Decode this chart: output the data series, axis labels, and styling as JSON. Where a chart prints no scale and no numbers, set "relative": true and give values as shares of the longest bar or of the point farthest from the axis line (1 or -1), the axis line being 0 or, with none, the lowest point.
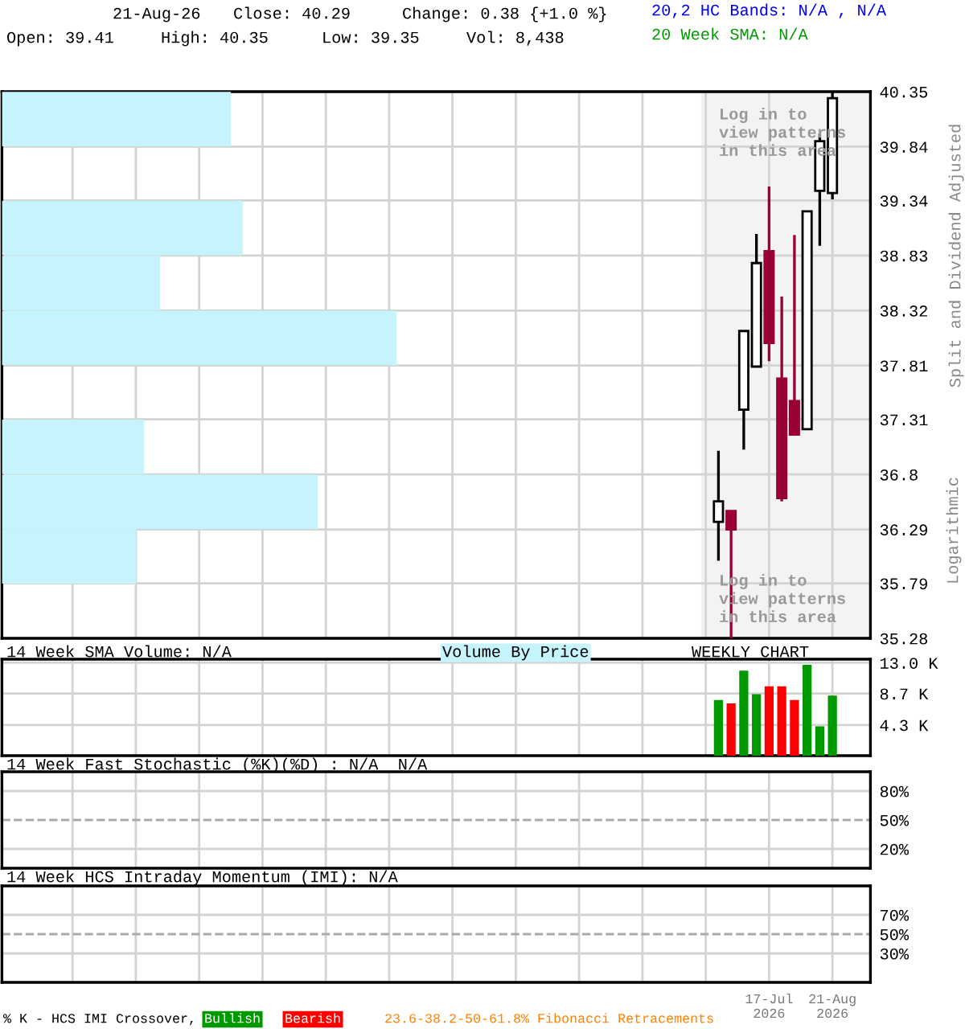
{
  "chart_data": [
    {
      "type": "candlestick",
      "ylabel": "Split and Dividend Adjusted",
      "x": [
        "2026-06-19",
        "2026-06-26",
        "2026-07-03",
        "2026-07-10",
        "2026-07-17",
        "2026-07-24",
        "2026-07-31",
        "2026-08-07",
        "2026-08-14",
        "2026-08-21"
      ],
      "ohlc": [
        [
          36.36,
          37.02,
          36.0,
          36.55
        ],
        [
          36.46,
          36.46,
          35.28,
          36.29
        ],
        [
          37.4,
          38.13,
          37.03,
          38.13
        ],
        [
          37.8,
          39.03,
          37.8,
          38.76
        ],
        [
          38.87,
          39.47,
          37.85,
          38.02
        ],
        [
          37.69,
          38.45,
          36.55,
          36.58
        ],
        [
          37.48,
          39.02,
          37.17,
          37.17
        ],
        [
          37.22,
          39.24,
          37.22,
          39.24
        ],
        [
          39.43,
          39.96,
          38.92,
          39.89
        ],
        [
          39.41,
          40.35,
          39.35,
          40.29
        ]
      ],
      "colors": [
        "#000000",
        "#990033",
        "#000000",
        "#000000",
        "#990033",
        "#990033",
        "#990033",
        "#000000",
        "#000000",
        "#000000"
      ],
      "xlim": [
        "2025-05-19",
        "2026-09-11"
      ],
      "xticks": [
        {
          "value": "2025-06-27",
          "label": null
        },
        {
          "value": "2025-08-01",
          "label": null
        },
        {
          "value": "2025-09-05",
          "label": null
        },
        {
          "value": "2025-10-10",
          "label": null
        },
        {
          "value": "2025-11-14",
          "label": null
        },
        {
          "value": "2025-12-19",
          "label": null
        },
        {
          "value": "2026-01-23",
          "label": null
        },
        {
          "value": "2026-02-27",
          "label": null
        },
        {
          "value": "2026-04-03",
          "label": null
        },
        {
          "value": "2026-05-08",
          "label": null
        },
        {
          "value": "2026-06-12",
          "label": null
        },
        {
          "value": "2026-07-17",
          "label": null
        },
        {
          "value": "2026-08-21",
          "label": null
        }
      ],
      "ylim": [
        35.28,
        40.35
      ],
      "yticks": [
        40.35,
        39.84,
        39.34,
        38.83,
        38.32,
        37.81,
        37.31,
        36.8,
        36.29,
        35.79,
        35.28
      ],
      "bands": [
        {
          "axis": "x",
          "from": "2026-06-10",
          "to": "2026-09-11",
          "color": "#f3f3f3"
        }
      ],
      "grid": true,
      "tick_labels": "y",
      "annotations": [
        "21-Aug-26",
        "Close: 40.29",
        "Change: 0.38 {+1.0 %}",
        "Open: 39.41",
        "High: 40.35",
        "Low: 39.35",
        "Vol: 8,438",
        "20,2 HC Bands: N/A , N/A",
        "20 Week SMA: N/A",
        "Logarithmic",
        "Log in to\nview patterns\nin this area",
        "Log in to\nview patterns\nin this area"
      ]
    },
    {
      "type": "bar",
      "orientation": "horizontal",
      "relative": true,
      "x": [
        40.095,
        39.085,
        38.575,
        38.065,
        37.055,
        36.545,
        36.04
      ],
      "values": [
        0.58,
        0.61,
        0.4,
        1,
        0.36,
        0.8,
        0.34
      ],
      "ylim": [
        35.28,
        40.35
      ],
      "yticks": [
        40.35,
        39.84,
        39.34,
        38.83,
        38.32,
        37.81,
        37.31,
        36.8,
        36.29,
        35.79,
        35.28
      ],
      "color": "#c6f4fc",
      "tick_labels": false
    },
    {
      "type": "bar",
      "title": "14 Week SMA Volume: N/A",
      "x": [
        "2026-06-19",
        "2026-06-26",
        "2026-07-03",
        "2026-07-10",
        "2026-07-17",
        "2026-07-24",
        "2026-07-31",
        "2026-08-07",
        "2026-08-14",
        "2026-08-21"
      ],
      "values": [
        7.8,
        7.3,
        11.9,
        8.6,
        9.7,
        9.7,
        7.8,
        12.7,
        4.1,
        8.4
      ],
      "colors": [
        "#009900",
        "#ff0000",
        "#009900",
        "#009900",
        "#ff0000",
        "#ff0000",
        "#ff0000",
        "#009900",
        "#009900",
        "#009900"
      ],
      "xlim": [
        "2025-05-19",
        "2026-09-11"
      ],
      "xticks": [
        {
          "value": "2025-06-27",
          "label": null
        },
        {
          "value": "2025-08-01",
          "label": null
        },
        {
          "value": "2025-09-05",
          "label": null
        },
        {
          "value": "2025-10-10",
          "label": null
        },
        {
          "value": "2025-11-14",
          "label": null
        },
        {
          "value": "2025-12-19",
          "label": null
        },
        {
          "value": "2026-01-23",
          "label": null
        },
        {
          "value": "2026-02-27",
          "label": null
        },
        {
          "value": "2026-04-03",
          "label": null
        },
        {
          "value": "2026-05-08",
          "label": null
        },
        {
          "value": "2026-06-12",
          "label": null
        },
        {
          "value": "2026-07-17",
          "label": null
        },
        {
          "value": "2026-08-21",
          "label": null
        }
      ],
      "ylim": [
        0,
        13.5
      ],
      "yticks": [
        {
          "value": 13.0,
          "label": "13.0 K"
        },
        {
          "value": 8.7,
          "label": "8.7 K"
        },
        {
          "value": 4.3,
          "label": "4.3 K"
        }
      ],
      "grid": true,
      "tick_labels": "y",
      "annotations": [
        "Volume By Price",
        "WEEKLY CHART"
      ]
    },
    {
      "type": "line",
      "title": "14 Week Fast Stochastic (%K)(%D) : N/A  N/A",
      "xlim": [
        "2025-05-19",
        "2026-09-11"
      ],
      "xticks": [
        {
          "value": "2025-06-27",
          "label": null
        },
        {
          "value": "2025-08-01",
          "label": null
        },
        {
          "value": "2025-09-05",
          "label": null
        },
        {
          "value": "2025-10-10",
          "label": null
        },
        {
          "value": "2025-11-14",
          "label": null
        },
        {
          "value": "2025-12-19",
          "label": null
        },
        {
          "value": "2026-01-23",
          "label": null
        },
        {
          "value": "2026-02-27",
          "label": null
        },
        {
          "value": "2026-04-03",
          "label": null
        },
        {
          "value": "2026-05-08",
          "label": null
        },
        {
          "value": "2026-06-12",
          "label": null
        },
        {
          "value": "2026-07-17",
          "label": null
        },
        {
          "value": "2026-08-21",
          "label": null
        }
      ],
      "ylim": [
        0,
        100
      ],
      "yticks": [
        {
          "value": 80,
          "label": "80%"
        },
        {
          "value": 50,
          "label": "50%"
        },
        {
          "value": 20,
          "label": "20%"
        }
      ],
      "ref_lines": [
        {
          "axis": "y",
          "value": 50,
          "line_style": "dashed",
          "color": "#aaaaaa"
        }
      ],
      "grid": true,
      "tick_labels": "y"
    },
    {
      "type": "line",
      "title": "14 Week HCS Intraday Momentum (IMI): N/A",
      "xlim": [
        "2025-05-19",
        "2026-09-11"
      ],
      "xticks": [
        {
          "value": "2025-06-27",
          "label": null
        },
        {
          "value": "2025-08-01",
          "label": null
        },
        {
          "value": "2025-09-05",
          "label": null
        },
        {
          "value": "2025-10-10",
          "label": null
        },
        {
          "value": "2025-11-14",
          "label": null
        },
        {
          "value": "2025-12-19",
          "label": null
        },
        {
          "value": "2026-01-23",
          "label": null
        },
        {
          "value": "2026-02-27",
          "label": null
        },
        {
          "value": "2026-04-03",
          "label": null
        },
        {
          "value": "2026-05-08",
          "label": null
        },
        {
          "value": "2026-06-12",
          "label": null
        },
        {
          "value": "2026-07-17",
          "label": "17-Jul\n2026"
        },
        {
          "value": "2026-08-21",
          "label": "21-Aug\n2026"
        }
      ],
      "ylim": [
        0,
        100
      ],
      "yticks": [
        {
          "value": 70,
          "label": "70%"
        },
        {
          "value": 50,
          "label": "50%"
        },
        {
          "value": 30,
          "label": "30%"
        }
      ],
      "ref_lines": [
        {
          "axis": "y",
          "value": 50,
          "line_style": "dashed",
          "color": "#aaaaaa"
        }
      ],
      "grid": true,
      "annotations": [
        "% K - HCS IMI Crossover,",
        "Bullish",
        "Bearish",
        "23.6-38.2-50-61.8% Fibonacci Retracements"
      ]
    }
  ]
}
